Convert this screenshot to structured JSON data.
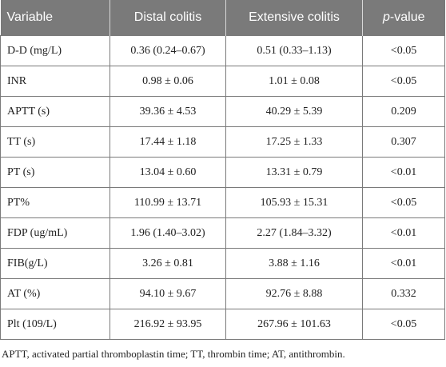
{
  "table": {
    "headers": {
      "variable": "Variable",
      "distal": "Distal colitis",
      "extensive": "Extensive colitis",
      "p_italic": "p",
      "p_rest": "-value"
    },
    "rows": [
      {
        "variable": "D-D (mg/L)",
        "distal": "0.36 (0.24–0.67)",
        "extensive": "0.51 (0.33–1.13)",
        "p": "<0.05"
      },
      {
        "variable": "INR",
        "distal": "0.98 ± 0.06",
        "extensive": "1.01 ± 0.08",
        "p": "<0.05"
      },
      {
        "variable": "APTT (s)",
        "distal": "39.36 ± 4.53",
        "extensive": "40.29 ± 5.39",
        "p": "0.209"
      },
      {
        "variable": "TT (s)",
        "distal": "17.44 ± 1.18",
        "extensive": "17.25 ± 1.33",
        "p": "0.307"
      },
      {
        "variable": "PT (s)",
        "distal": "13.04 ± 0.60",
        "extensive": "13.31 ± 0.79",
        "p": "<0.01"
      },
      {
        "variable": "PT%",
        "distal": "110.99 ± 13.71",
        "extensive": "105.93 ± 15.31",
        "p": "<0.05"
      },
      {
        "variable": "FDP (ug/mL)",
        "distal": "1.96 (1.40–3.02)",
        "extensive": "2.27 (1.84–3.32)",
        "p": "<0.01"
      },
      {
        "variable": "FIB(g/L)",
        "distal": "3.26 ± 0.81",
        "extensive": "3.88 ± 1.16",
        "p": "<0.01"
      },
      {
        "variable": "AT (%)",
        "distal": "94.10 ± 9.67",
        "extensive": "92.76 ± 8.88",
        "p": "0.332"
      },
      {
        "variable": "Plt (109/L)",
        "distal": "216.92 ± 93.95",
        "extensive": "267.96 ± 101.63",
        "p": "<0.05"
      }
    ]
  },
  "footnote": "APTT, activated partial thromboplastin time; TT, thrombin time; AT, antithrombin."
}
